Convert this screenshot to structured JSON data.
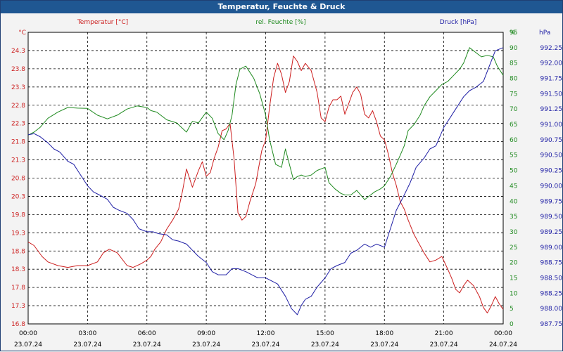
{
  "window": {
    "title": "Temperatur, Feuchte & Druck"
  },
  "colors": {
    "temperature": "#cc1f1f",
    "humidity": "#1f8a1f",
    "pressure": "#1f1fa5",
    "grid": "#000000"
  },
  "chart_data": {
    "type": "line",
    "title": "Temperatur, Feuchte & Druck",
    "grid": true,
    "x_ticks": [
      {
        "time": "00:00",
        "date": "23.07.24"
      },
      {
        "time": "03:00",
        "date": "23.07.24"
      },
      {
        "time": "06:00",
        "date": "23.07.24"
      },
      {
        "time": "09:00",
        "date": "23.07.24"
      },
      {
        "time": "12:00",
        "date": "23.07.24"
      },
      {
        "time": "15:00",
        "date": "23.07.24"
      },
      {
        "time": "18:00",
        "date": "23.07.24"
      },
      {
        "time": "21:00",
        "date": "23.07.24"
      },
      {
        "time": "00:00",
        "date": "24.07.24"
      }
    ],
    "x_range_hours": [
      0,
      24
    ],
    "axes": {
      "left": {
        "header": "Temperatur [°C]",
        "unit": "°C",
        "min": 16.75,
        "max": 24.75,
        "step": 0.5,
        "decimals": 1
      },
      "middle": {
        "header": "rel. Feuchte [%]",
        "unit": "%",
        "min": 0,
        "max": 95,
        "step": 5,
        "decimals": 0
      },
      "right": {
        "header": "Druck [hPa]",
        "unit": "hPa",
        "min": 987.75,
        "max": 992.5,
        "step": 0.25,
        "decimals": 2
      }
    },
    "series": [
      {
        "name": "Temperatur [°C]",
        "axis": "left",
        "x": [
          0,
          0.3,
          0.7,
          1,
          1.5,
          2,
          2.5,
          3,
          3.5,
          3.8,
          4.1,
          4.5,
          5,
          5.3,
          5.7,
          6,
          6.2,
          6.4,
          6.7,
          7,
          7.3,
          7.6,
          7.8,
          8,
          8.3,
          8.6,
          8.8,
          9,
          9.2,
          9.4,
          9.6,
          9.8,
          10,
          10.2,
          10.4,
          10.6,
          10.8,
          11,
          11.2,
          11.5,
          11.8,
          12,
          12.2,
          12.4,
          12.6,
          12.8,
          13,
          13.2,
          13.4,
          13.6,
          13.8,
          14,
          14.3,
          14.6,
          14.8,
          15,
          15.2,
          15.4,
          15.6,
          15.8,
          16,
          16.2,
          16.4,
          16.6,
          16.8,
          17,
          17.2,
          17.4,
          17.6,
          17.8,
          18,
          18.2,
          18.4,
          18.6,
          18.8,
          19,
          19.2,
          19.5,
          19.8,
          20,
          20.3,
          20.6,
          20.9,
          21.2,
          21.4,
          21.6,
          21.8,
          22,
          22.2,
          22.5,
          22.8,
          23,
          23.2,
          23.4,
          23.6,
          23.8,
          24
        ],
        "values": [
          19.0,
          18.9,
          18.6,
          18.45,
          18.35,
          18.3,
          18.35,
          18.35,
          18.45,
          18.7,
          18.8,
          18.7,
          18.35,
          18.3,
          18.4,
          18.5,
          18.6,
          18.8,
          19.0,
          19.35,
          19.6,
          19.9,
          20.4,
          21.0,
          20.5,
          20.95,
          21.2,
          20.8,
          20.9,
          21.3,
          21.6,
          22.05,
          22.1,
          22.25,
          21.3,
          19.8,
          19.6,
          19.7,
          20.1,
          20.6,
          21.5,
          21.8,
          22.7,
          23.5,
          23.9,
          23.6,
          23.1,
          23.4,
          24.1,
          23.95,
          23.7,
          23.9,
          23.7,
          23.1,
          22.4,
          22.3,
          22.7,
          22.9,
          22.9,
          23.0,
          22.5,
          22.8,
          23.1,
          23.25,
          23.05,
          22.5,
          22.4,
          22.6,
          22.3,
          21.9,
          21.8,
          21.4,
          20.9,
          20.55,
          20.1,
          19.9,
          19.6,
          19.2,
          18.9,
          18.7,
          18.45,
          18.5,
          18.6,
          18.25,
          18.0,
          17.7,
          17.6,
          17.8,
          17.95,
          17.8,
          17.5,
          17.2,
          17.05,
          17.25,
          17.5,
          17.3,
          17.15
        ]
      },
      {
        "name": "rel. Feuchte [%]",
        "axis": "middle",
        "x": [
          0,
          0.3,
          0.6,
          1,
          1.5,
          2,
          2.5,
          3,
          3.5,
          4,
          4.5,
          5,
          5.5,
          6,
          6.2,
          6.5,
          7,
          7.5,
          8,
          8.3,
          8.6,
          9,
          9.3,
          9.6,
          9.9,
          10.1,
          10.3,
          10.5,
          10.7,
          11,
          11.2,
          11.4,
          11.7,
          12,
          12.2,
          12.5,
          12.8,
          13,
          13.2,
          13.4,
          13.6,
          13.8,
          14,
          14.3,
          14.6,
          15,
          15.2,
          15.5,
          15.8,
          16,
          16.3,
          16.6,
          17,
          17.3,
          17.5,
          17.8,
          18,
          18.3,
          18.6,
          18.8,
          19,
          19.2,
          19.5,
          19.8,
          20,
          20.3,
          20.6,
          20.9,
          21.2,
          21.5,
          21.8,
          22,
          22.3,
          22.6,
          22.9,
          23.2,
          23.5,
          23.7,
          24
        ],
        "values": [
          61.5,
          62.5,
          64,
          67,
          69,
          70.5,
          70.3,
          70.2,
          68,
          66.8,
          68,
          70,
          71,
          70.5,
          69.5,
          69,
          66.5,
          65.5,
          62.5,
          66,
          65.5,
          69,
          67,
          62,
          60,
          63,
          68,
          78,
          83,
          84,
          82,
          80,
          75,
          68,
          60,
          52,
          51,
          57,
          52,
          47,
          48,
          48.5,
          48,
          48.5,
          50,
          51,
          46,
          44,
          42.5,
          42,
          42,
          43.5,
          40.5,
          42,
          43,
          44,
          45,
          48,
          52,
          55,
          58,
          63,
          65,
          68,
          71,
          74,
          76,
          78,
          79,
          81,
          83,
          85,
          90,
          88.5,
          87,
          87.5,
          87,
          84,
          81
        ]
      },
      {
        "name": "Druck [hPa]",
        "axis": "right",
        "x": [
          0,
          0.3,
          0.6,
          1,
          1.3,
          1.6,
          2,
          2.3,
          2.6,
          3,
          3.3,
          3.6,
          4,
          4.3,
          4.6,
          5,
          5.3,
          5.6,
          6,
          6.3,
          6.6,
          7,
          7.3,
          7.6,
          8,
          8.3,
          8.6,
          9,
          9.3,
          9.6,
          10,
          10.3,
          10.6,
          11,
          11.3,
          11.6,
          12,
          12.3,
          12.6,
          13,
          13.3,
          13.6,
          13.8,
          14,
          14.3,
          14.6,
          15,
          15.3,
          15.6,
          16,
          16.3,
          16.6,
          17,
          17.3,
          17.6,
          18,
          18.3,
          18.6,
          19,
          19.3,
          19.6,
          20,
          20.3,
          20.6,
          21,
          21.3,
          21.6,
          22,
          22.3,
          22.6,
          23,
          23.3,
          23.6,
          24
        ],
        "values": [
          990.83,
          990.85,
          990.8,
          990.7,
          990.6,
          990.55,
          990.4,
          990.35,
          990.2,
          990.0,
          989.9,
          989.85,
          989.78,
          989.65,
          989.6,
          989.55,
          989.45,
          989.3,
          989.25,
          989.25,
          989.22,
          989.2,
          989.12,
          989.1,
          989.05,
          988.95,
          988.85,
          988.75,
          988.6,
          988.55,
          988.55,
          988.65,
          988.65,
          988.6,
          988.55,
          988.5,
          988.5,
          988.45,
          988.4,
          988.2,
          988.0,
          987.9,
          988.05,
          988.15,
          988.2,
          988.35,
          988.5,
          988.65,
          988.7,
          988.75,
          988.9,
          988.95,
          989.05,
          989.0,
          989.05,
          989.0,
          989.3,
          989.6,
          989.85,
          990.05,
          990.3,
          990.45,
          990.6,
          990.65,
          990.95,
          991.1,
          991.25,
          991.45,
          991.55,
          991.6,
          991.7,
          991.95,
          992.2,
          992.25
        ]
      }
    ]
  }
}
